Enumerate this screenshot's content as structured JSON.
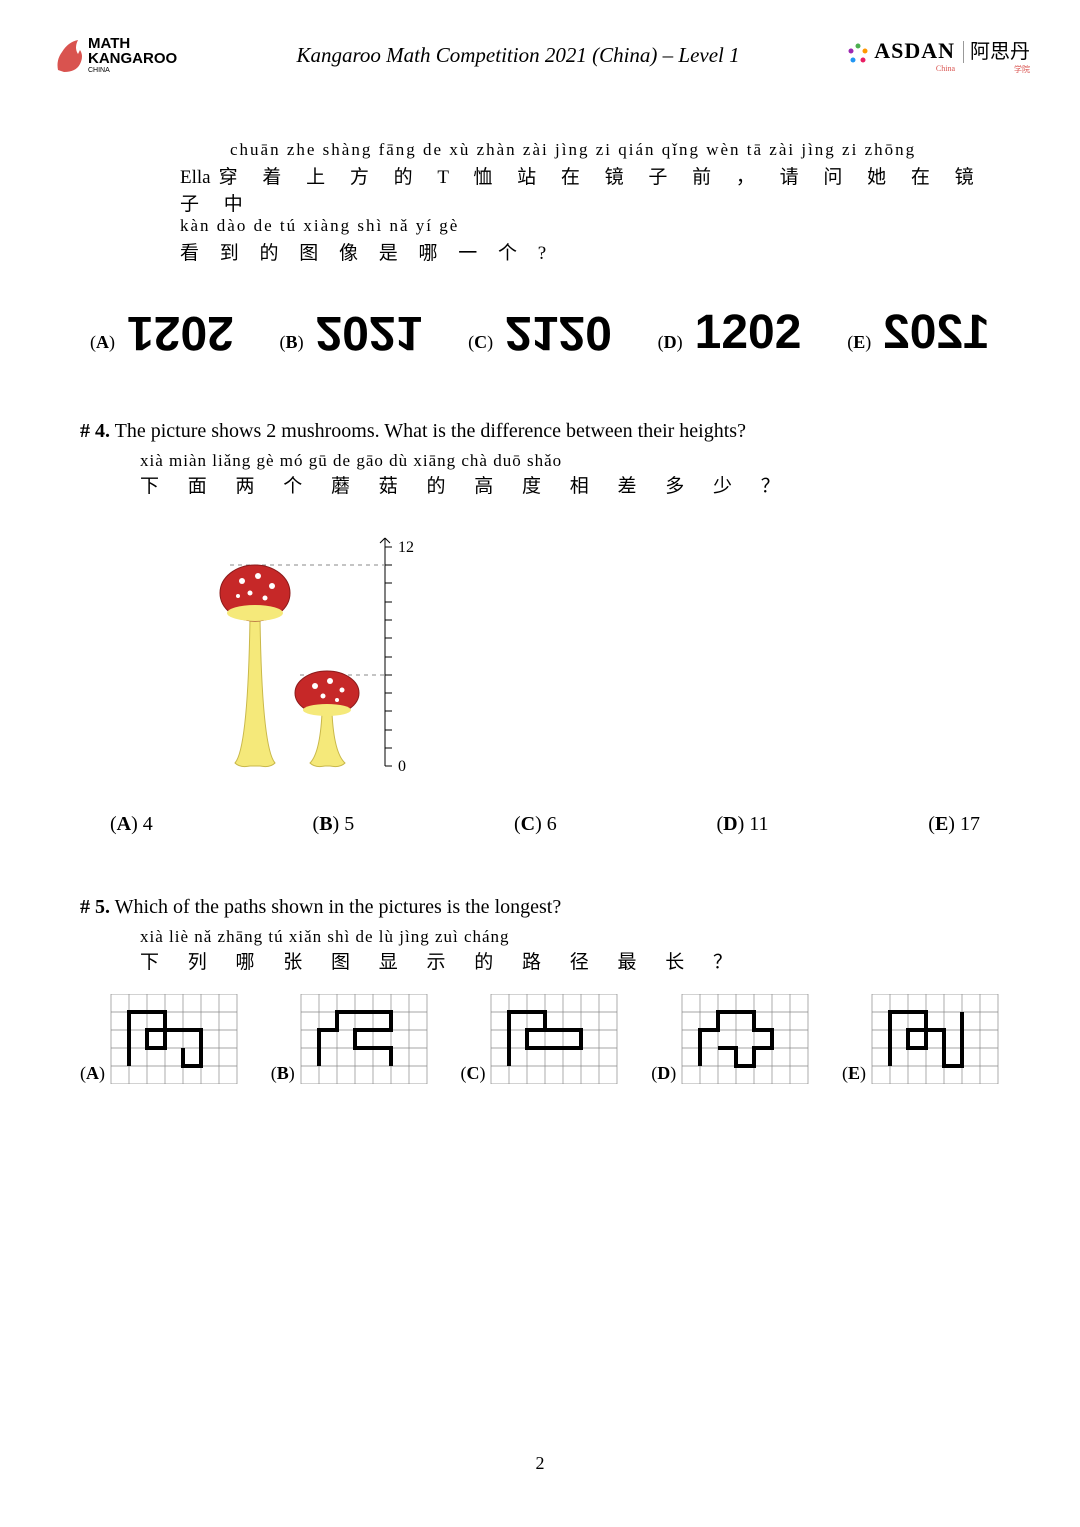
{
  "header": {
    "title": "Kangaroo Math Competition 2021 (China) – Level 1",
    "logo_left_text1": "MATH",
    "logo_left_text2": "KANGAROO",
    "logo_left_sub": "CHINA",
    "asdan_text": "ASDAN",
    "asdan_china": "China",
    "asdan_cn": "阿思丹",
    "asdan_sub": "学院"
  },
  "q3": {
    "pinyin1": "chuān zhe shàng fāng de    xù zhàn zài jìng zi qián    qǐng wèn tā zài jìng zi zhōng",
    "ella": "Ella",
    "hanzi1": "穿 着 上 方 的 T 恤 站 在 镜 子 前 ， 请 问 她 在 镜 子 中",
    "pinyin2": "kàn dào de tú xiàng shì nǎ yí gè",
    "hanzi2": "看 到 的 图 像 是 哪 一 个 ?",
    "options": {
      "A": {
        "label": "(A)",
        "text": "2021"
      },
      "B": {
        "label": "(B)",
        "text": "2021"
      },
      "C": {
        "label": "(C)",
        "text": "2120"
      },
      "D": {
        "label": "(D)",
        "text": "1202"
      },
      "E": {
        "label": "(E)",
        "text": "1202"
      }
    }
  },
  "q4": {
    "number": "# 4.",
    "text": "The picture shows 2 mushrooms. What is the difference between their heights?",
    "pinyin": "xià miàn liǎng gè mó gū de gāo dù xiāng chà duō shǎo",
    "hanzi": "下 面 两 个 蘑 菇 的 高 度 相 差 多 少 ？",
    "ruler_top": "12",
    "ruler_bottom": "0",
    "mushroom_colors": {
      "cap": "#c62828",
      "spots": "#ffffff",
      "stem": "#f5e97a",
      "base": "#e8d968"
    },
    "options": {
      "A": "(A) 4",
      "B": "(B) 5",
      "C": "(C) 6",
      "D": "(D) 11",
      "E": "(E) 17"
    }
  },
  "q5": {
    "number": "# 5.",
    "text": "Which of the paths shown in the pictures is the longest?",
    "pinyin": "xià liè nǎ zhāng tú xiǎn shì de lù jìng zuì cháng",
    "hanzi": "下 列 哪 张 图 显 示 的 路 径 最 长 ？",
    "grid_color": "#888888",
    "path_color": "#000000",
    "options": {
      "A": "(A)",
      "B": "(B)",
      "C": "(C)",
      "D": "(D)",
      "E": "(E)"
    },
    "paths": {
      "A": [
        [
          1,
          4
        ],
        [
          1,
          1
        ],
        [
          3,
          1
        ],
        [
          3,
          3
        ],
        [
          2,
          3
        ],
        [
          2,
          2
        ],
        [
          5,
          2
        ],
        [
          5,
          4
        ],
        [
          4,
          4
        ],
        [
          4,
          3
        ]
      ],
      "B": [
        [
          1,
          4
        ],
        [
          1,
          2
        ],
        [
          2,
          2
        ],
        [
          2,
          1
        ],
        [
          5,
          1
        ],
        [
          5,
          2
        ],
        [
          3,
          2
        ],
        [
          3,
          3
        ],
        [
          5,
          3
        ],
        [
          5,
          4
        ]
      ],
      "C": [
        [
          1,
          4
        ],
        [
          1,
          1
        ],
        [
          3,
          1
        ],
        [
          3,
          2
        ],
        [
          5,
          2
        ],
        [
          5,
          3
        ],
        [
          2,
          3
        ],
        [
          2,
          2
        ],
        [
          4,
          2
        ]
      ],
      "D": [
        [
          1,
          4
        ],
        [
          1,
          2
        ],
        [
          2,
          2
        ],
        [
          2,
          1
        ],
        [
          4,
          1
        ],
        [
          4,
          2
        ],
        [
          5,
          2
        ],
        [
          5,
          3
        ],
        [
          4,
          3
        ],
        [
          4,
          4
        ],
        [
          3,
          4
        ],
        [
          3,
          3
        ],
        [
          2,
          3
        ]
      ],
      "E": [
        [
          1,
          4
        ],
        [
          1,
          1
        ],
        [
          3,
          1
        ],
        [
          3,
          3
        ],
        [
          2,
          3
        ],
        [
          2,
          2
        ],
        [
          4,
          2
        ],
        [
          4,
          4
        ],
        [
          5,
          4
        ],
        [
          5,
          1
        ]
      ]
    }
  },
  "page_number": "2"
}
